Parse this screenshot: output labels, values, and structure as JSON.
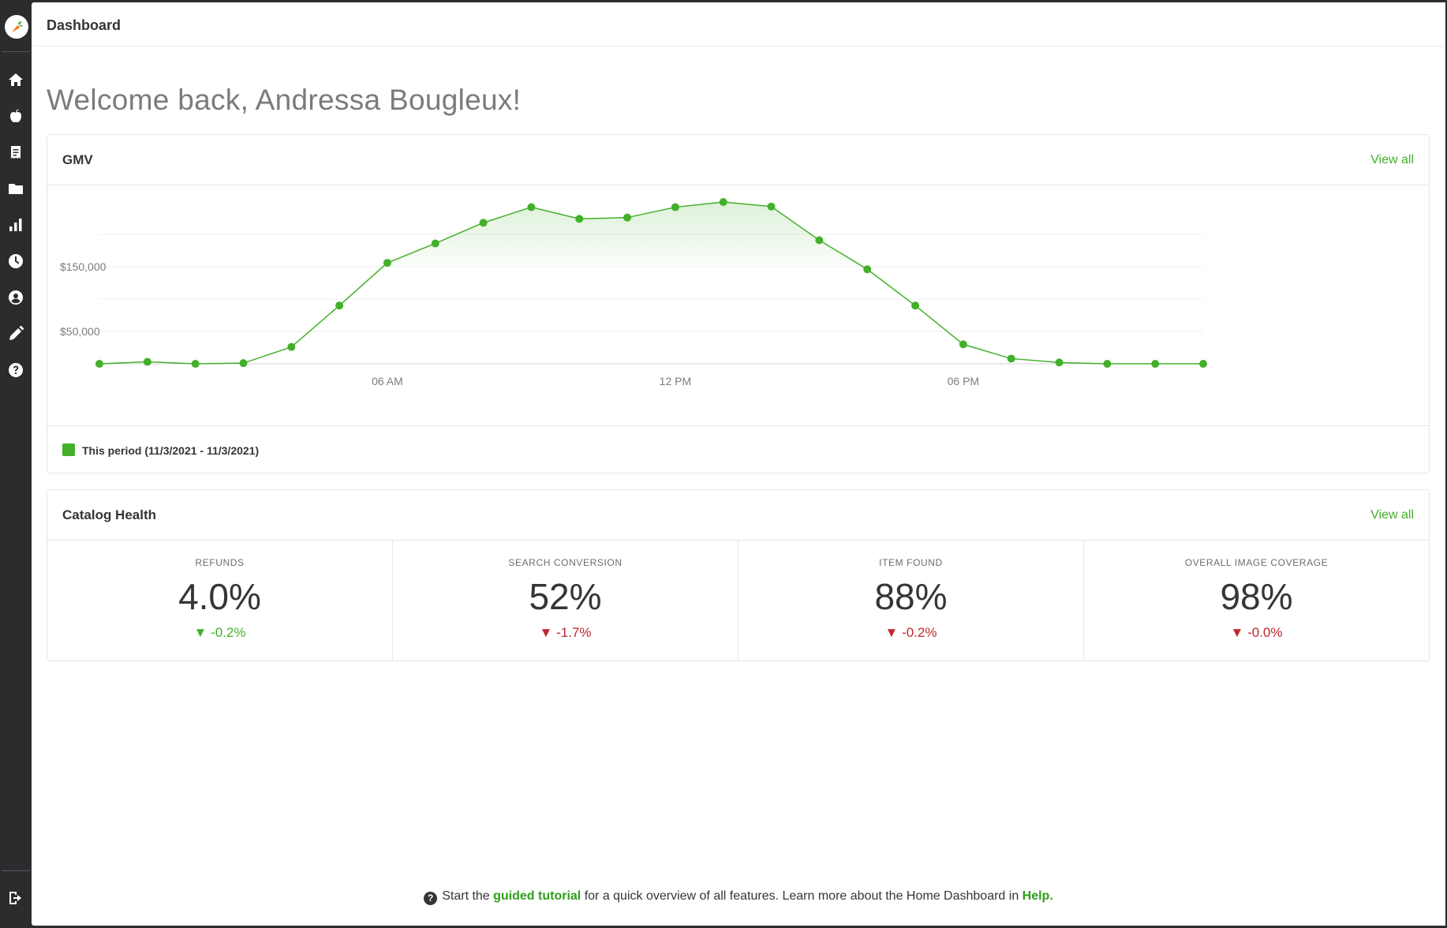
{
  "app": {
    "logo_icon": "carrot-logo-icon",
    "accent_color": "#43b02a"
  },
  "sidebar": {
    "items": [
      {
        "name": "home",
        "icon": "home-icon"
      },
      {
        "name": "catalog",
        "icon": "apple-icon"
      },
      {
        "name": "reports",
        "icon": "receipt-icon"
      },
      {
        "name": "files",
        "icon": "folder-icon"
      },
      {
        "name": "analytics",
        "icon": "bar-chart-icon"
      },
      {
        "name": "history",
        "icon": "clock-icon"
      },
      {
        "name": "account",
        "icon": "user-circle-icon"
      },
      {
        "name": "edit",
        "icon": "pencil-icon"
      },
      {
        "name": "help",
        "icon": "question-circle-icon"
      }
    ],
    "logout_icon": "logout-icon"
  },
  "header": {
    "title": "Dashboard"
  },
  "welcome": "Welcome back, Andressa Bougleux!",
  "gmv": {
    "title": "GMV",
    "view_all": "View all",
    "legend_label": "This period (11/3/2021 - 11/3/2021)"
  },
  "chart_data": {
    "type": "area",
    "title": "GMV",
    "x": [
      "12 AM",
      "01 AM",
      "02 AM",
      "03 AM",
      "04 AM",
      "05 AM",
      "06 AM",
      "07 AM",
      "08 AM",
      "09 AM",
      "10 AM",
      "11 AM",
      "12 PM",
      "01 PM",
      "02 PM",
      "03 PM",
      "04 PM",
      "05 PM",
      "06 PM",
      "07 PM",
      "08 PM",
      "09 PM",
      "10 PM",
      "11 PM"
    ],
    "series": [
      {
        "name": "This period (11/3/2021 - 11/3/2021)",
        "values": [
          0,
          3000,
          0,
          1000,
          26000,
          90000,
          156000,
          186000,
          218000,
          242000,
          224000,
          226000,
          242000,
          250000,
          243000,
          191000,
          146000,
          90000,
          30000,
          8000,
          2000,
          0,
          0,
          0
        ],
        "color": "#43b02a"
      }
    ],
    "y_tick_labels": [
      "$50,000",
      "$150,000"
    ],
    "y_tick_values": [
      50000,
      150000
    ],
    "x_tick_labels": [
      "06 AM",
      "12 PM",
      "06 PM"
    ],
    "x_tick_indices": [
      6,
      12,
      18
    ],
    "ylim": [
      0,
      250000
    ],
    "grid": true,
    "legend": "bottom-left"
  },
  "catalog": {
    "title": "Catalog Health",
    "view_all": "View all",
    "metrics": [
      {
        "label": "REFUNDS",
        "value": "4.0%",
        "delta": "-0.2%",
        "trend": "down",
        "color": "#43b02a"
      },
      {
        "label": "SEARCH CONVERSION",
        "value": "52%",
        "delta": "-1.7%",
        "trend": "down",
        "color": "#c0262d"
      },
      {
        "label": "ITEM FOUND",
        "value": "88%",
        "delta": "-0.2%",
        "trend": "down",
        "color": "#c0262d"
      },
      {
        "label": "OVERALL IMAGE COVERAGE",
        "value": "98%",
        "delta": "-0.0%",
        "trend": "down",
        "color": "#c0262d"
      }
    ]
  },
  "footer": {
    "before": "Start the ",
    "link1": "guided tutorial",
    "middle": " for a quick overview of all features. Learn more about the Home Dashboard in ",
    "link2": "Help."
  }
}
